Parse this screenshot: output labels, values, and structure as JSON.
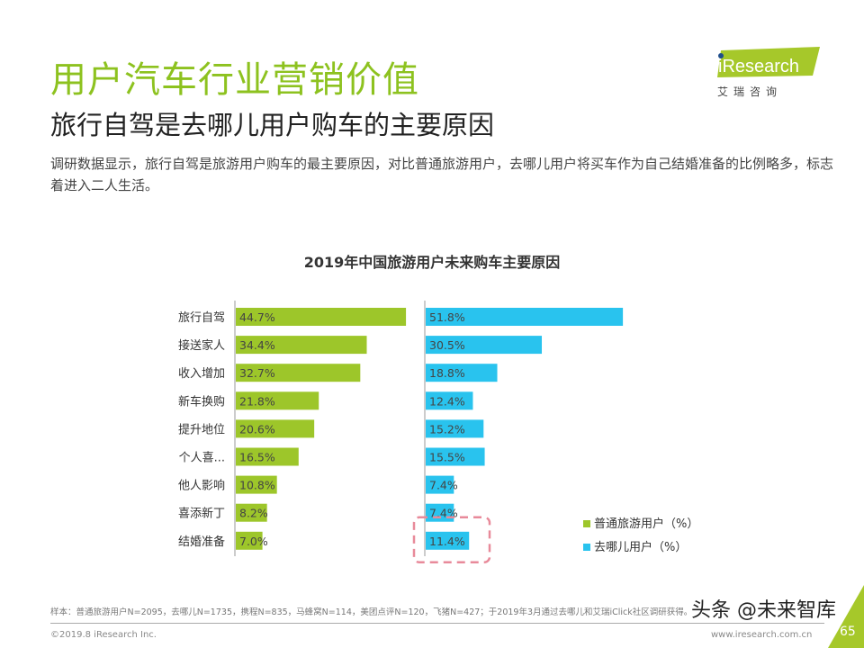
{
  "header": {
    "title": "用户汽车行业营销价值",
    "subtitle": "旅行自驾是去哪儿用户购车的主要原因",
    "description": "调研数据显示，旅行自驾是旅游用户购车的最主要原因，对比普通旅游用户，去哪儿用户将买车作为自己结婚准备的比例略多，标志着进入二人生活。"
  },
  "logo": {
    "brand": "iResearch",
    "cn": "艾 瑞 咨 询",
    "color": "#a6c82a"
  },
  "chart_data": {
    "type": "bar",
    "orientation": "horizontal",
    "title": "2019年中国旅游用户未来购车主要原因",
    "categories": [
      "旅行自驾",
      "接送家人",
      "收入增加",
      "新车换购",
      "提升地位",
      "个人喜...",
      "他人影响",
      "喜添新丁",
      "结婚准备"
    ],
    "series": [
      {
        "name": "普通旅游用户（%）",
        "color": "#9dc62a",
        "values": [
          44.7,
          34.4,
          32.7,
          21.8,
          20.6,
          16.5,
          10.8,
          8.2,
          7.0
        ]
      },
      {
        "name": "去哪儿用户（%）",
        "color": "#29c3ee",
        "values": [
          51.8,
          30.5,
          18.8,
          12.4,
          15.2,
          15.5,
          7.4,
          7.4,
          11.4
        ]
      }
    ],
    "highlight": {
      "series": 1,
      "category": "结婚准备",
      "color": "#e88a9a"
    },
    "legend": "right"
  },
  "footer": {
    "note": "样本：普通旅游用户N=2095，去哪儿N=1735，携程N=835，马蜂窝N=114，美团点评N=120，飞猪N=427；于2019年3月通过去哪儿和艾瑞iClick社区调研获得。",
    "copyright": "©2019.8 iResearch Inc.",
    "url": "www.iresearch.com.cn",
    "page": "65",
    "watermark": "头条 @未来智库"
  }
}
